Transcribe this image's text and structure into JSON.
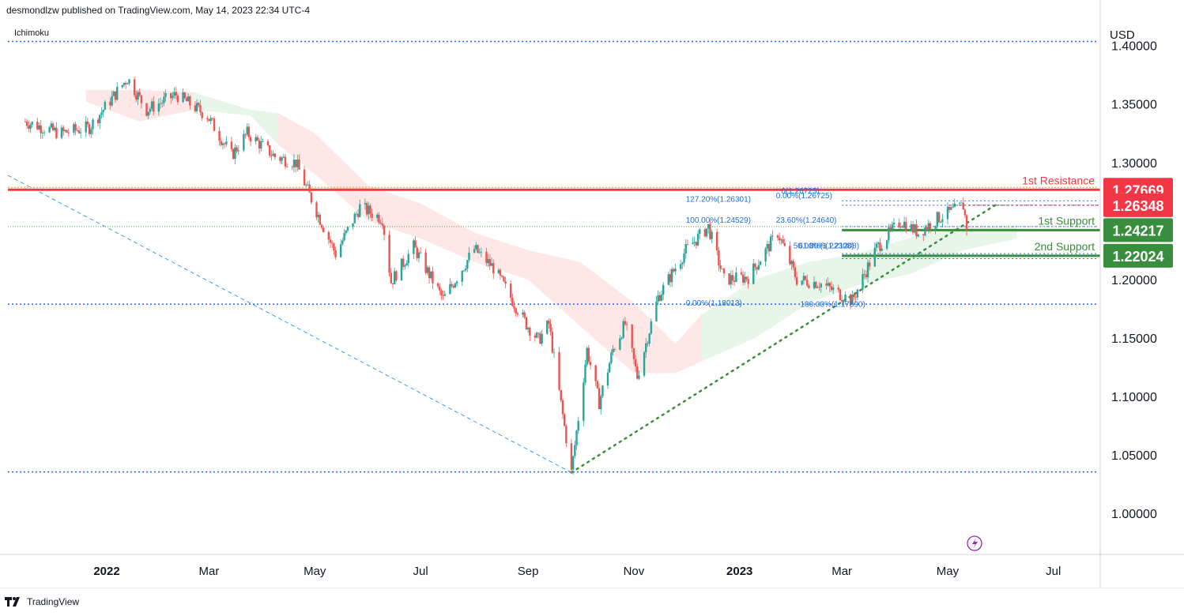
{
  "header": {
    "published": "desmondlzw published on TradingView.com, May 14, 2023 22:34 UTC-4"
  },
  "indicator": "Ichimoku",
  "footer": {
    "brand": "TradingView"
  },
  "colors": {
    "up": "#26a69a",
    "down": "#ef5350",
    "resistance": "#f23645",
    "support": "#388e3c",
    "fib": "#2962ff",
    "cloud_green": "#e8f5e9",
    "cloud_red": "#fde7e7"
  },
  "chart_data": {
    "type": "candlestick",
    "currency": "USD",
    "ylim": [
      0.965,
      1.42
    ],
    "y_ticks": [
      {
        "value": 1.4,
        "label": "1.40000"
      },
      {
        "value": 1.35,
        "label": "1.35000"
      },
      {
        "value": 1.3,
        "label": "1.30000"
      },
      {
        "value": 1.2,
        "label": "1.20000"
      },
      {
        "value": 1.15,
        "label": "1.15000"
      },
      {
        "value": 1.1,
        "label": "1.10000"
      },
      {
        "value": 1.05,
        "label": "1.05000"
      },
      {
        "value": 1.0,
        "label": "1.00000"
      }
    ],
    "x_ticks": [
      {
        "date": "2022-01-01",
        "label": "2022",
        "bold": true
      },
      {
        "date": "2022-03-01",
        "label": "Mar",
        "bold": false
      },
      {
        "date": "2022-05-01",
        "label": "May",
        "bold": false
      },
      {
        "date": "2022-07-01",
        "label": "Jul",
        "bold": false
      },
      {
        "date": "2022-09-01",
        "label": "Sep",
        "bold": false
      },
      {
        "date": "2022-11-01",
        "label": "Nov",
        "bold": false
      },
      {
        "date": "2023-01-01",
        "label": "2023",
        "bold": true
      },
      {
        "date": "2023-03-01",
        "label": "Mar",
        "bold": false
      },
      {
        "date": "2023-05-01",
        "label": "May",
        "bold": false
      },
      {
        "date": "2023-07-01",
        "label": "Jul",
        "bold": false
      }
    ],
    "price_path": [
      {
        "date": "2021-11-15",
        "close": 1.335
      },
      {
        "date": "2021-12-05",
        "close": 1.325
      },
      {
        "date": "2021-12-22",
        "close": 1.33
      },
      {
        "date": "2022-01-13",
        "close": 1.372
      },
      {
        "date": "2022-01-24",
        "close": 1.345
      },
      {
        "date": "2022-02-10",
        "close": 1.358
      },
      {
        "date": "2022-02-28",
        "close": 1.34
      },
      {
        "date": "2022-03-14",
        "close": 1.306
      },
      {
        "date": "2022-03-23",
        "close": 1.325
      },
      {
        "date": "2022-04-08",
        "close": 1.305
      },
      {
        "date": "2022-04-20",
        "close": 1.3
      },
      {
        "date": "2022-05-03",
        "close": 1.255
      },
      {
        "date": "2022-05-13",
        "close": 1.222
      },
      {
        "date": "2022-05-27",
        "close": 1.262
      },
      {
        "date": "2022-06-09",
        "close": 1.252
      },
      {
        "date": "2022-06-14",
        "close": 1.198
      },
      {
        "date": "2022-06-27",
        "close": 1.228
      },
      {
        "date": "2022-07-14",
        "close": 1.183
      },
      {
        "date": "2022-08-01",
        "close": 1.226
      },
      {
        "date": "2022-08-12",
        "close": 1.21
      },
      {
        "date": "2022-08-31",
        "close": 1.162
      },
      {
        "date": "2022-09-07",
        "close": 1.148
      },
      {
        "date": "2022-09-13",
        "close": 1.162
      },
      {
        "date": "2022-09-26",
        "close": 1.035
      },
      {
        "date": "2022-10-05",
        "close": 1.14
      },
      {
        "date": "2022-10-12",
        "close": 1.095
      },
      {
        "date": "2022-10-20",
        "close": 1.14
      },
      {
        "date": "2022-10-27",
        "close": 1.162
      },
      {
        "date": "2022-11-03",
        "close": 1.117
      },
      {
        "date": "2022-11-15",
        "close": 1.185
      },
      {
        "date": "2022-12-01",
        "close": 1.225
      },
      {
        "date": "2022-12-14",
        "close": 1.245
      },
      {
        "date": "2022-12-23",
        "close": 1.2
      },
      {
        "date": "2023-01-06",
        "close": 1.202
      },
      {
        "date": "2023-01-23",
        "close": 1.24
      },
      {
        "date": "2023-02-03",
        "close": 1.2
      },
      {
        "date": "2023-02-16",
        "close": 1.197
      },
      {
        "date": "2023-03-07",
        "close": 1.182
      },
      {
        "date": "2023-03-21",
        "close": 1.227
      },
      {
        "date": "2023-04-04",
        "close": 1.25
      },
      {
        "date": "2023-04-14",
        "close": 1.24
      },
      {
        "date": "2023-04-25",
        "close": 1.252
      },
      {
        "date": "2023-05-10",
        "close": 1.263
      },
      {
        "date": "2023-05-12",
        "close": 1.245
      }
    ],
    "cloud": [
      {
        "date": "2021-12-20",
        "top": 1.362,
        "bottom": 1.352,
        "color": "red"
      },
      {
        "date": "2022-01-20",
        "top": 1.362,
        "bottom": 1.335,
        "color": "red"
      },
      {
        "date": "2022-02-20",
        "top": 1.36,
        "bottom": 1.345,
        "color": "green"
      },
      {
        "date": "2022-03-25",
        "top": 1.345,
        "bottom": 1.34,
        "color": "green"
      },
      {
        "date": "2022-04-10",
        "top": 1.342,
        "bottom": 1.315,
        "color": "red"
      },
      {
        "date": "2022-05-01",
        "top": 1.325,
        "bottom": 1.29,
        "color": "red"
      },
      {
        "date": "2022-06-01",
        "top": 1.28,
        "bottom": 1.25,
        "color": "red"
      },
      {
        "date": "2022-07-01",
        "top": 1.265,
        "bottom": 1.235,
        "color": "red"
      },
      {
        "date": "2022-08-01",
        "top": 1.24,
        "bottom": 1.215,
        "color": "red"
      },
      {
        "date": "2022-09-01",
        "top": 1.225,
        "bottom": 1.2,
        "color": "red"
      },
      {
        "date": "2022-10-01",
        "top": 1.215,
        "bottom": 1.16,
        "color": "red"
      },
      {
        "date": "2022-11-01",
        "top": 1.18,
        "bottom": 1.12,
        "color": "red"
      },
      {
        "date": "2022-11-25",
        "top": 1.145,
        "bottom": 1.12,
        "color": "red"
      },
      {
        "date": "2022-12-10",
        "top": 1.17,
        "bottom": 1.13,
        "color": "green"
      },
      {
        "date": "2023-01-10",
        "top": 1.2,
        "bottom": 1.15,
        "color": "green"
      },
      {
        "date": "2023-02-10",
        "top": 1.215,
        "bottom": 1.18,
        "color": "green"
      },
      {
        "date": "2023-03-10",
        "top": 1.222,
        "bottom": 1.195,
        "color": "green"
      },
      {
        "date": "2023-04-10",
        "top": 1.236,
        "bottom": 1.205,
        "color": "green"
      },
      {
        "date": "2023-05-10",
        "top": 1.245,
        "bottom": 1.225,
        "color": "green"
      },
      {
        "date": "2023-06-10",
        "top": 1.245,
        "bottom": 1.235,
        "color": "green"
      }
    ],
    "horizontal_levels": [
      {
        "name": "1st Resistance",
        "value": 1.27669,
        "label": "1.27669",
        "color": "#f23645"
      },
      {
        "name": "1st Support",
        "value": 1.24217,
        "label": "1.24217",
        "color": "#388e3c"
      },
      {
        "name": "2nd Support",
        "value": 1.22024,
        "label": "1.22024",
        "color": "#388e3c"
      }
    ],
    "current_price": {
      "value": 1.26348,
      "label": "1.26348"
    },
    "fib_annotations": [
      {
        "text": "127.20%(1.26301)",
        "value": 1.26301
      },
      {
        "text": "100.00%(1.24529)",
        "value": 1.24529
      },
      {
        "text": "0.00%(1.18013)",
        "value": 1.18013
      },
      {
        "text": "0.00%(1.26725)",
        "value": 1.26725
      },
      {
        "text": "0(1.26725)",
        "value": 1.26725
      },
      {
        "text": "23.60%(1.24640)",
        "value": 1.2464
      },
      {
        "text": "50.00%(1.22308)",
        "value": 1.22308
      },
      {
        "text": "61.80%(1.21208)",
        "value": 1.21208
      },
      {
        "text": "100.00%(1.17890)",
        "value": 1.1789
      }
    ],
    "dotted_levels": [
      1.4035,
      1.0355,
      1.1789,
      1.2673,
      1.2635,
      1.2452,
      1.2221,
      1.2178
    ],
    "trendline": {
      "from": {
        "date": "2022-09-26",
        "value": 1.035
      },
      "to": {
        "date": "2023-05-30",
        "value": 1.265
      }
    },
    "dashed_line": {
      "from": {
        "date": "2021-11-05",
        "value": 1.289
      },
      "to": {
        "date": "2022-09-26",
        "value": 1.035
      }
    }
  }
}
